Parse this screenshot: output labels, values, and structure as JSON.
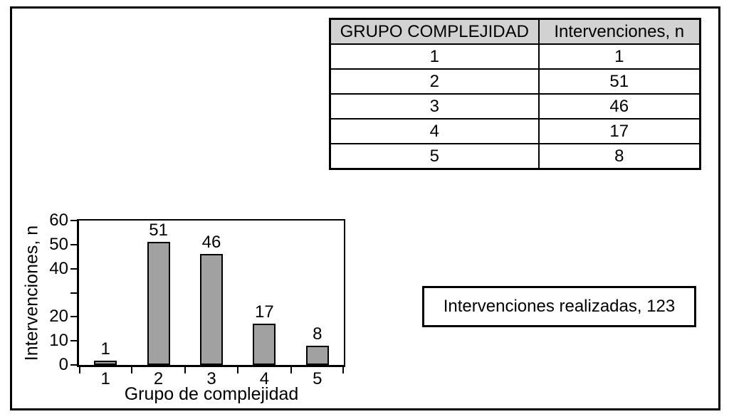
{
  "figure": {
    "background": "#ffffff",
    "border_color": "#000000"
  },
  "table": {
    "header_bg": "#d2d2d2",
    "headers": [
      "GRUPO COMPLEJIDAD",
      "Intervenciones, n"
    ],
    "rows": [
      [
        "1",
        "1"
      ],
      [
        "2",
        "51"
      ],
      [
        "3",
        "46"
      ],
      [
        "4",
        "17"
      ],
      [
        "5",
        "8"
      ]
    ]
  },
  "chart_data": {
    "type": "bar",
    "title": "",
    "categories": [
      "1",
      "2",
      "3",
      "4",
      "5"
    ],
    "values": [
      1,
      51,
      46,
      17,
      8
    ],
    "bar_value_labels": [
      "1",
      "51",
      "46",
      "17",
      "8"
    ],
    "xlabel": "Grupo de complejidad",
    "ylabel": "Intervenciones, n",
    "ylim": [
      0,
      60
    ],
    "ytick_values": [
      0,
      10,
      20,
      30,
      40,
      50,
      60
    ],
    "ytick_labels": [
      "0",
      "10",
      "20",
      "",
      "40",
      "50",
      "60"
    ],
    "grid": false,
    "legend": false,
    "bar_fill": "#a1a1a1",
    "bar_border": "#000000"
  },
  "summary_box": {
    "text": "Intervenciones realizadas, 123"
  }
}
